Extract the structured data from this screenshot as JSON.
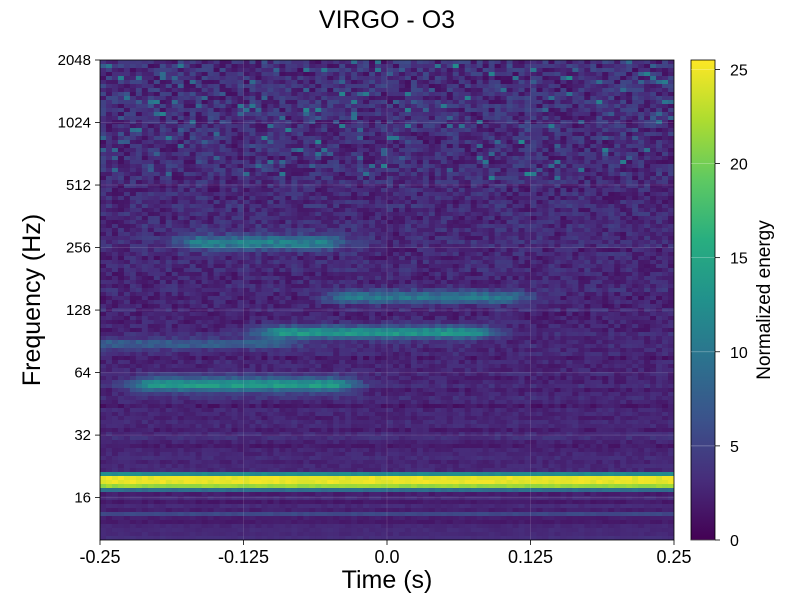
{
  "chart_data": {
    "type": "heatmap",
    "title": "VIRGO - O3",
    "xlabel": "Time (s)",
    "ylabel": "Frequency (Hz)",
    "xlim": [
      -0.25,
      0.25
    ],
    "ylim": [
      10,
      2048
    ],
    "y_scale": "log2",
    "x_ticks": [
      {
        "value": -0.25,
        "label": "-0.25"
      },
      {
        "value": -0.125,
        "label": "-0.125"
      },
      {
        "value": 0.0,
        "label": "0.0"
      },
      {
        "value": 0.125,
        "label": "0.125"
      },
      {
        "value": 0.25,
        "label": "0.25"
      }
    ],
    "y_ticks": [
      {
        "value": 16,
        "label": "16"
      },
      {
        "value": 32,
        "label": "32"
      },
      {
        "value": 64,
        "label": "64"
      },
      {
        "value": 128,
        "label": "128"
      },
      {
        "value": 256,
        "label": "256"
      },
      {
        "value": 512,
        "label": "512"
      },
      {
        "value": 1024,
        "label": "1024"
      },
      {
        "value": 2048,
        "label": "2048"
      }
    ],
    "colorbar": {
      "label": "Normalized energy",
      "vmin": 0,
      "vmax": 25.5,
      "colormap": "viridis",
      "ticks": [
        {
          "value": 0,
          "label": "0"
        },
        {
          "value": 5,
          "label": "5"
        },
        {
          "value": 10,
          "label": "10"
        },
        {
          "value": 15,
          "label": "15"
        },
        {
          "value": 20,
          "label": "20"
        },
        {
          "value": 25,
          "label": "25"
        }
      ]
    },
    "features": [
      {
        "freq": 19.5,
        "t_start": -0.25,
        "t_end": 0.25,
        "energy": 25.5,
        "bandwidth_log2": 0.09
      },
      {
        "freq": 18.0,
        "t_start": -0.25,
        "t_end": 0.25,
        "energy": 13,
        "bandwidth_log2": 0.05
      },
      {
        "freq": 13.2,
        "t_start": -0.25,
        "t_end": 0.25,
        "energy": 4,
        "bandwidth_log2": 0.04
      },
      {
        "freq": 56,
        "t_start": -0.2,
        "t_end": -0.05,
        "energy": 11,
        "bandwidth_log2": 0.12
      },
      {
        "freq": 100,
        "t_start": -0.09,
        "t_end": 0.07,
        "energy": 11,
        "bandwidth_log2": 0.1
      },
      {
        "freq": 147,
        "t_start": -0.03,
        "t_end": 0.1,
        "energy": 8,
        "bandwidth_log2": 0.1
      },
      {
        "freq": 270,
        "t_start": -0.16,
        "t_end": -0.06,
        "energy": 8,
        "bandwidth_log2": 0.12
      },
      {
        "freq": 88,
        "t_start": -0.25,
        "t_end": -0.1,
        "energy": 5,
        "bandwidth_log2": 0.08
      }
    ],
    "grid": true
  }
}
